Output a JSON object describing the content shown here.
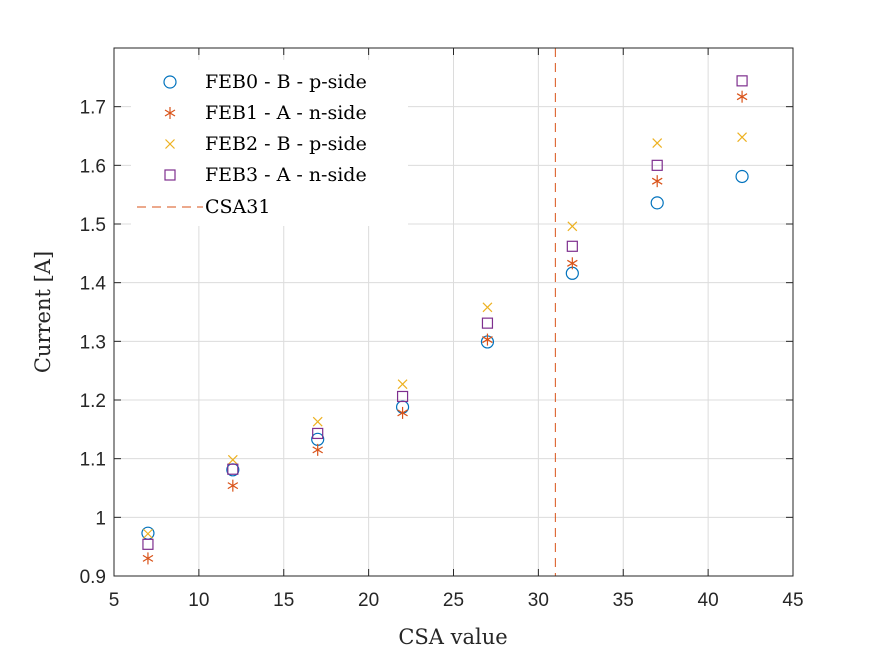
{
  "chart_data": {
    "type": "scatter",
    "xlabel": "CSA value",
    "ylabel": "Current [A]",
    "xlim": [
      5,
      45
    ],
    "ylim": [
      0.9,
      1.8
    ],
    "xticks": [
      5,
      10,
      15,
      20,
      25,
      30,
      35,
      40,
      45
    ],
    "yticks": [
      0.9,
      1,
      1.1,
      1.2,
      1.3,
      1.4,
      1.5,
      1.6,
      1.7
    ],
    "ytick_labels": [
      "0.9",
      "1",
      "1.1",
      "1.2",
      "1.3",
      "1.4",
      "1.5",
      "1.6",
      "1.7"
    ],
    "grid": true,
    "legend_position": "top-left",
    "x": [
      7,
      12,
      17,
      22,
      27,
      32,
      37,
      42
    ],
    "series": [
      {
        "name": "FEB0 - B - p-side",
        "marker": "circle",
        "color": "#0072BD",
        "values": [
          0.973,
          1.081,
          1.133,
          1.188,
          1.299,
          1.416,
          1.536,
          1.581
        ]
      },
      {
        "name": "FEB1 - A - n-side",
        "marker": "asterisk",
        "color": "#D95319",
        "values": [
          0.93,
          1.054,
          1.115,
          1.178,
          1.303,
          1.433,
          1.573,
          1.717
        ]
      },
      {
        "name": "FEB2 - B - p-side",
        "marker": "x",
        "color": "#EDB120",
        "values": [
          0.972,
          1.098,
          1.163,
          1.227,
          1.358,
          1.496,
          1.638,
          1.648
        ]
      },
      {
        "name": "FEB3 - A - n-side",
        "marker": "square",
        "color": "#7E2F8E",
        "values": [
          0.954,
          1.082,
          1.143,
          1.206,
          1.331,
          1.462,
          1.6,
          1.744
        ]
      }
    ],
    "reference_line": {
      "name": "CSA31",
      "x": 31,
      "color": "#D95319",
      "style": "dashed"
    }
  }
}
